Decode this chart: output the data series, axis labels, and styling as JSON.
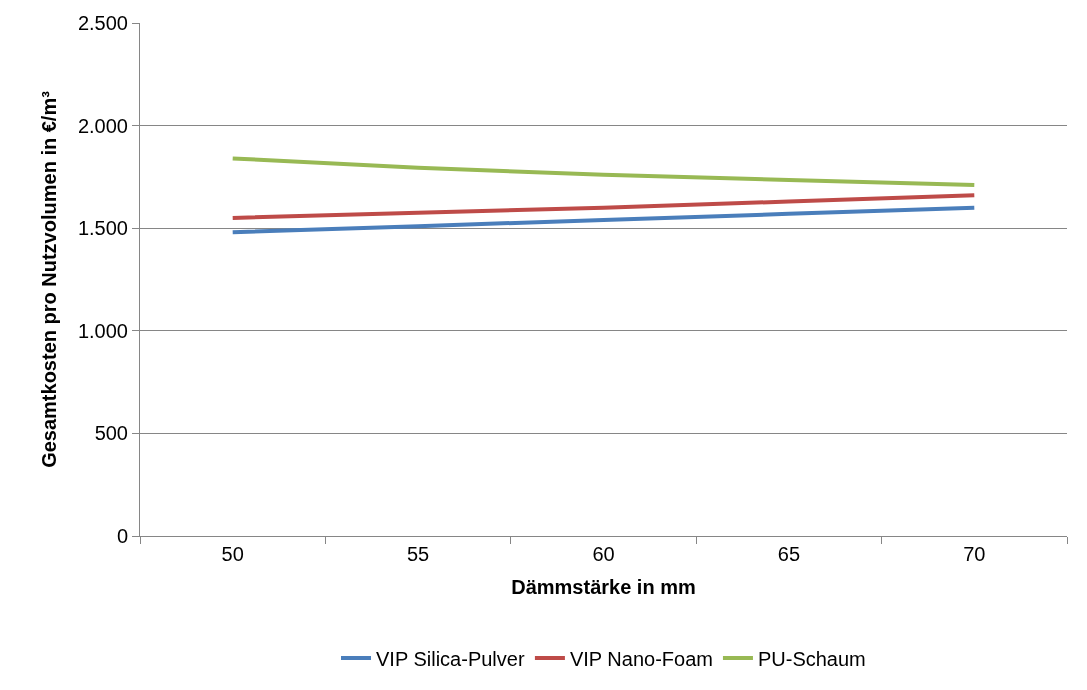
{
  "chart_data": {
    "type": "line",
    "xlabel": "Dämmstärke in mm",
    "ylabel": "Gesamtkosten pro Nutzvolumen in €/m³",
    "categories": [
      "50",
      "55",
      "60",
      "65",
      "70"
    ],
    "series": [
      {
        "name": "VIP Silica-Pulver",
        "color": "#4a7ebb",
        "values": [
          1480,
          1510,
          1540,
          1570,
          1600
        ]
      },
      {
        "name": "VIP Nano-Foam",
        "color": "#be4b48",
        "values": [
          1550,
          1575,
          1600,
          1630,
          1660
        ]
      },
      {
        "name": "PU-Schaum",
        "color": "#98b954",
        "values": [
          1840,
          1795,
          1760,
          1735,
          1710
        ]
      }
    ],
    "ylim": [
      0,
      2500
    ],
    "yticks": [
      0,
      {
        "value": 500,
        "label": "500"
      },
      {
        "value": 1000,
        "label": "1.000"
      },
      {
        "value": 1500,
        "label": "1.500"
      },
      {
        "value": 2000,
        "label": "2.000"
      },
      {
        "value": 2500,
        "label": "2.500"
      }
    ],
    "grid": "y",
    "legend": "bottom",
    "marker": "none",
    "line_style": "solid"
  }
}
